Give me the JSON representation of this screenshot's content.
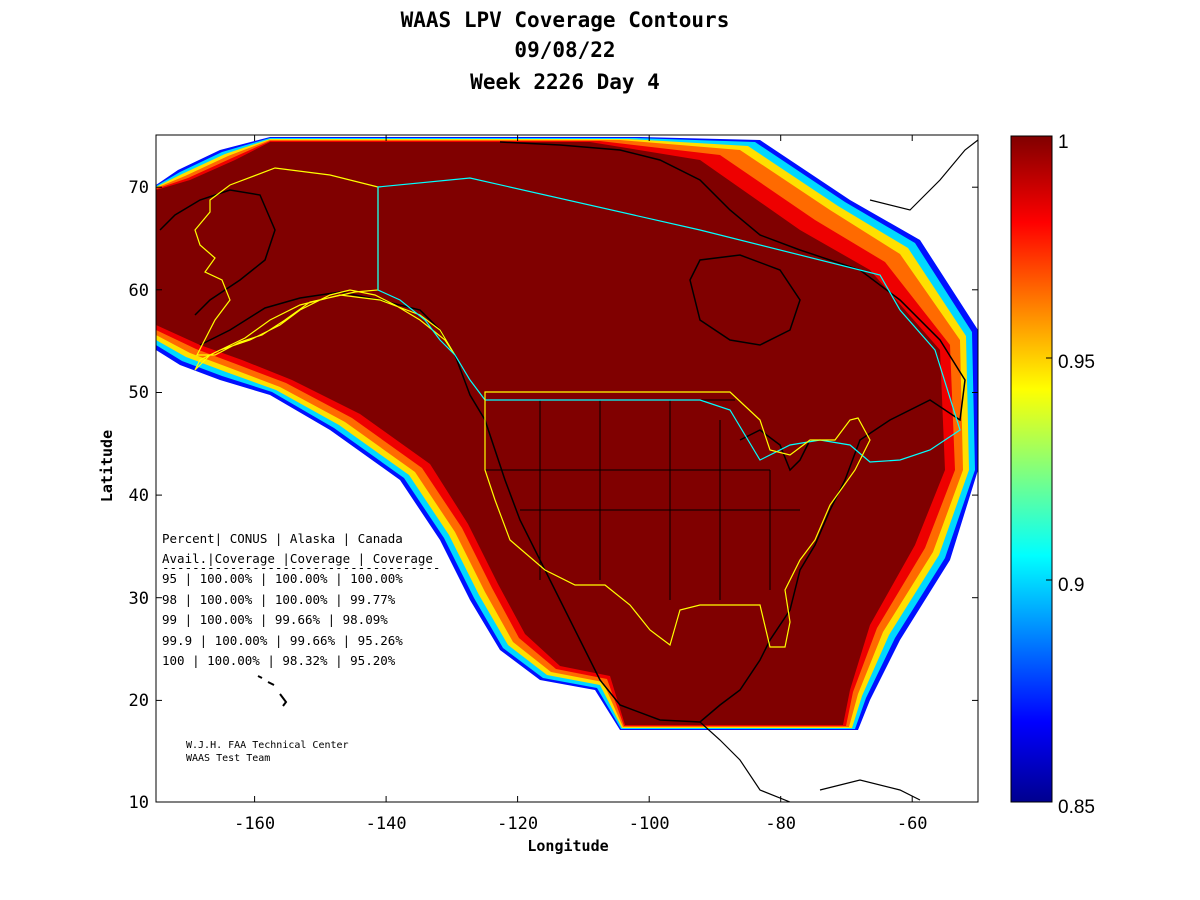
{
  "title": {
    "line1": "WAAS LPV Coverage Contours",
    "line2": "09/08/22",
    "line3": "Week 2226 Day 4"
  },
  "axes": {
    "xlabel": "Longitude",
    "ylabel": "Latitude",
    "xlim": [
      -175,
      -50
    ],
    "ylim": [
      10,
      75
    ],
    "xticks": [
      "-160",
      "-140",
      "-120",
      "-100",
      "-80",
      "-60"
    ],
    "yticks": [
      "70",
      "60",
      "50",
      "40",
      "30",
      "20",
      "10"
    ]
  },
  "colorbar": {
    "range": [
      0.85,
      1
    ],
    "ticks": [
      "1",
      "0.95",
      "0.9",
      "0.85"
    ],
    "colormap": "jet"
  },
  "table": {
    "header1": "Percent| CONUS   | Alaska  | Canada",
    "header2": " Avail.|Coverage |Coverage | Coverage",
    "rule": "-------------------------------------",
    "rows": [
      "  95   | 100.00%  | 100.00% | 100.00%",
      "  98   | 100.00%  | 100.00% | 99.77%",
      "  99   | 100.00%  | 99.66% | 98.09%",
      "99.9   | 100.00%  | 99.66% | 95.26%",
      " 100   | 100.00%  | 98.32% | 95.20%"
    ]
  },
  "credit": {
    "line1": "W.J.H. FAA Technical Center",
    "line2": "WAAS Test Team"
  },
  "colors": {
    "full_coverage": "#800000",
    "service_outline": "#ffff00",
    "canada_outline": "#00ffff"
  }
}
